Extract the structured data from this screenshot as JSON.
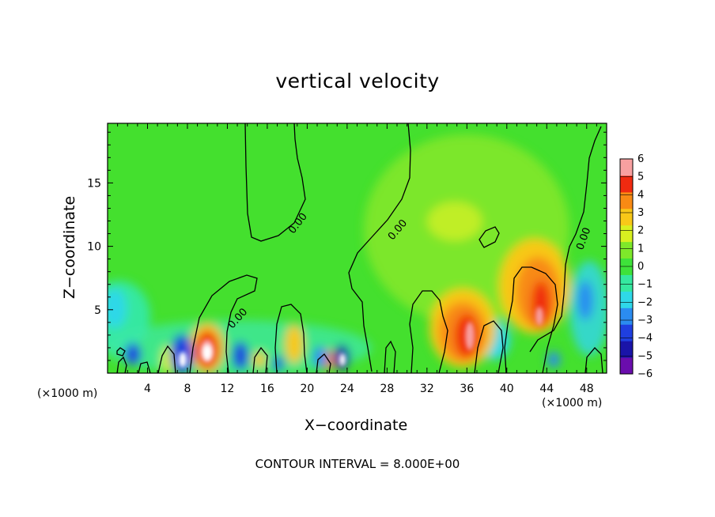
{
  "chart_data": {
    "type": "heatmap",
    "title": "vertical velocity",
    "xlabel": "X−coordinate",
    "ylabel": "Z−coordinate",
    "x_unit_label": "(×1000 m)",
    "footer": "CONTOUR INTERVAL = 8.000E+00",
    "xlim": [
      0,
      50
    ],
    "ylim": [
      0,
      19.7
    ],
    "x_ticks": [
      4,
      8,
      12,
      16,
      20,
      24,
      28,
      32,
      36,
      40,
      44,
      48
    ],
    "y_ticks": [
      5,
      10,
      15
    ],
    "colorbar": {
      "range": [
        -6,
        6
      ],
      "ticks": [
        "6",
        "5",
        "4",
        "3",
        "2",
        "1",
        "0",
        "−1",
        "−2",
        "−3",
        "−4",
        "−5",
        "−6"
      ],
      "colors": [
        "#6a0dad",
        "#1a14a8",
        "#1f3fe0",
        "#2b8cf0",
        "#2fd8e8",
        "#35e8a0",
        "#3ee23a",
        "#7ee82a",
        "#d8f020",
        "#f8c818",
        "#f88a14",
        "#f02a10",
        "#f8a0a0"
      ]
    },
    "contour_label": "0.00",
    "features": [
      {
        "type": "updraft",
        "x": 10.0,
        "z": 1.8,
        "value": 6.5
      },
      {
        "type": "updraft",
        "x": 35.5,
        "z": 3.0,
        "value": 5.0
      },
      {
        "type": "updraft",
        "x": 42.8,
        "z": 5.5,
        "value": 5.0
      },
      {
        "type": "updraft",
        "x": 34.0,
        "z": 3.8,
        "value": 3.5
      },
      {
        "type": "updraft",
        "x": 19.0,
        "z": 2.0,
        "value": 2.5
      },
      {
        "type": "updraft",
        "x": 35.0,
        "z": 12.3,
        "value": 1.5
      },
      {
        "type": "downdraft",
        "x": 7.5,
        "z": 1.5,
        "value": -6.5
      },
      {
        "type": "downdraft",
        "x": 23.5,
        "z": 1.2,
        "value": -6.0
      },
      {
        "type": "downdraft",
        "x": 13.0,
        "z": 1.5,
        "value": -5.0
      },
      {
        "type": "downdraft",
        "x": 2.0,
        "z": 1.5,
        "value": -4.0
      },
      {
        "type": "downdraft",
        "x": 47.5,
        "z": 4.5,
        "value": -3.5
      },
      {
        "type": "downdraft",
        "x": 0.5,
        "z": 5.5,
        "value": -2.5
      },
      {
        "type": "downdraft",
        "x": 39.0,
        "z": 3.0,
        "value": -2.0
      }
    ]
  }
}
